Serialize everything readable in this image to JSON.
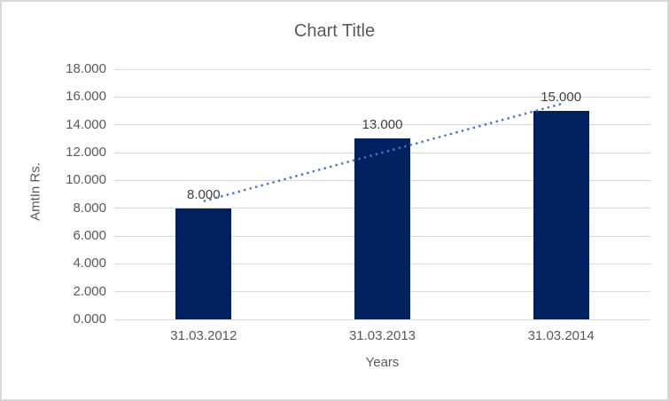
{
  "chart_data": {
    "type": "bar",
    "title": "Chart Title",
    "xlabel": "Years",
    "ylabel": "AmtIn Rs.",
    "categories": [
      "31.03.2012",
      "31.03.2013",
      "31.03.2014"
    ],
    "values": [
      8.0,
      13.0,
      15.0
    ],
    "value_labels": [
      "8.000",
      "13.000",
      "15.000"
    ],
    "yticks": [
      "0.000",
      "2.000",
      "4.000",
      "6.000",
      "8.000",
      "10.000",
      "12.000",
      "14.000",
      "16.000",
      "18.000"
    ],
    "ylim": [
      0,
      18
    ],
    "grid": true,
    "legend": "none",
    "trendline": {
      "type": "linear",
      "style": "dotted",
      "color": "#4472C4"
    },
    "colors": {
      "bar": "#002060",
      "gridline": "#D9D9D9",
      "axis_text": "#595959",
      "data_label_text": "#404040",
      "title_text": "#595959",
      "chart_border": "#D9D9D9",
      "background": "#ffffff"
    }
  }
}
